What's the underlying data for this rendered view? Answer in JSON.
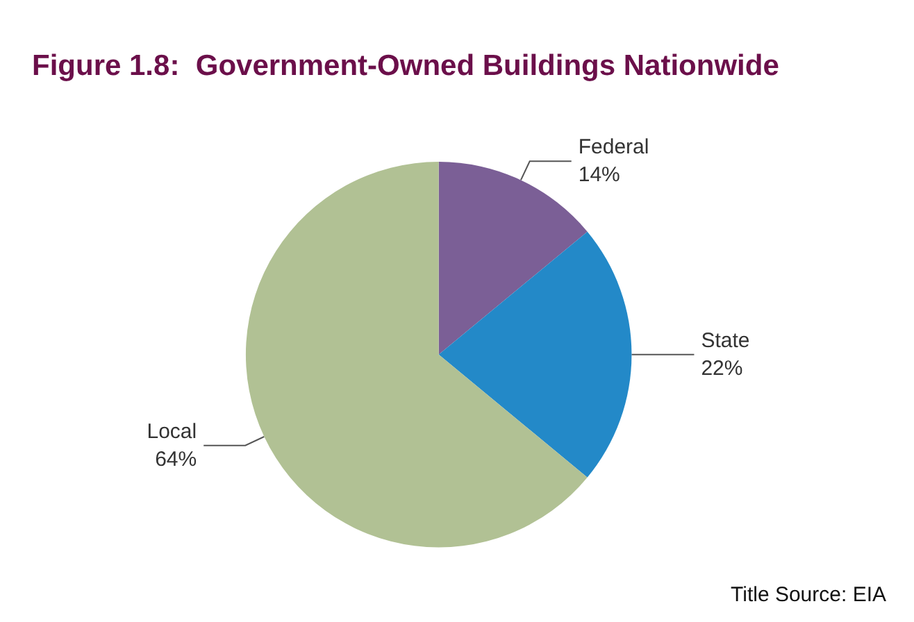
{
  "chart_data": {
    "type": "pie",
    "title": "Figure 1.8:  Government-Owned Buildings Nationwide",
    "categories": [
      "Federal",
      "State",
      "Local"
    ],
    "values": [
      14,
      22,
      64
    ],
    "colors": [
      "#7b5f96",
      "#2389c8",
      "#b1c194"
    ],
    "value_labels": [
      "14%",
      "22%",
      "64%"
    ],
    "legend": false,
    "annotations": [
      "Title Source: EIA"
    ]
  }
}
